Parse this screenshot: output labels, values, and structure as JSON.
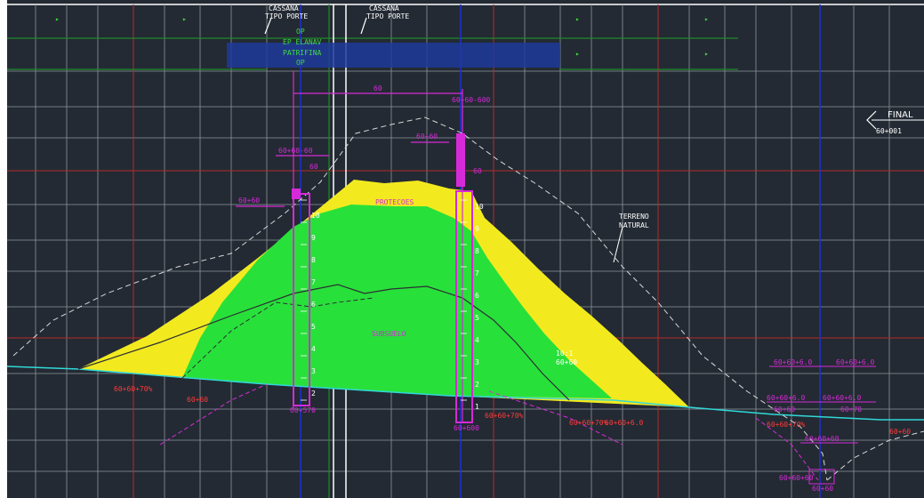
{
  "colors": {
    "background": "#232a33",
    "grid_white": "#9aa0a8",
    "grid_red": "#b52a2a",
    "grid_green": "#1f8a2a",
    "axis_blue": "#1d2fd8",
    "fill_yellow": "#f2ea1f",
    "fill_green": "#28e03a",
    "magenta": "#d62ad8",
    "red_text": "#ff3b3b",
    "cyan": "#30d8d8",
    "white": "#ffffff"
  },
  "labels": {
    "top_left_note_1": "CASSANA",
    "top_left_note_2": "TIPO PORTE",
    "top_right_note_1": "CASSANA",
    "top_right_note_2": "TIPO PORTE",
    "center_note_1": "OP",
    "center_note_2": "EP ELANAV",
    "center_note_3": "PATRIFINA",
    "center_note_4": "OP",
    "dim_top": "60",
    "dim_right": "60+60-600",
    "dim_left_elev": "60+60-60",
    "left_top_tag": "60+60",
    "right_top_tag": "60+60",
    "left_col_tag": "60",
    "right_col_tag": "60",
    "top_fill_label": "PROTECOES",
    "center_fill_label": "SUBSUELO",
    "terreno_1": "TERRENO",
    "terreno_2": "NATURAL",
    "final_1": "FINAL",
    "final_2": "60+001",
    "bottom_left_col": "60+570",
    "bottom_right_col": "60+600",
    "red_left_1": "60+60+70%",
    "red_left_2": "60+60",
    "red_mid": "60+60+70%",
    "red_right_1": "60+60+70%",
    "red_right_2": "60+60+6.0",
    "right_top_1": "60+60+6.0",
    "right_top_2": "60+60+6.0",
    "right_mid_1": "60+60+6.0",
    "right_mid_2": "60+60+6.0",
    "right_row_1": "60+60",
    "right_row_2": "60+70",
    "right_red_1": "60+60+70%",
    "right_red_2": "60+60",
    "right_bottom_1": "60+60+60",
    "right_bottom_2": "60+60+60",
    "right_bottom_3": "60+60",
    "slope_tag_1": "10:1",
    "slope_tag_2": "60+60",
    "col_marks": [
      "10",
      "9",
      "8",
      "7",
      "6",
      "5",
      "4",
      "3",
      "2",
      "1"
    ]
  }
}
